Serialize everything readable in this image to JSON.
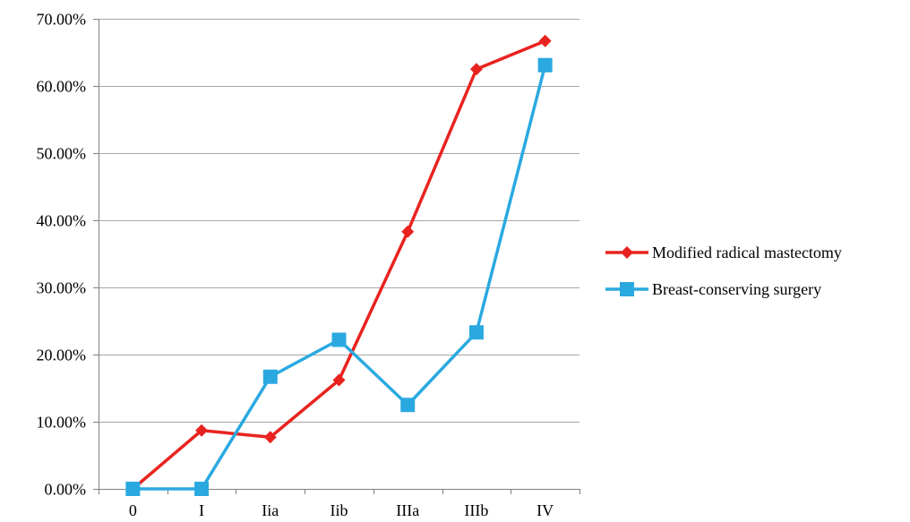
{
  "chart_data": {
    "type": "line",
    "categories": [
      "0",
      "I",
      "Iia",
      "Iib",
      "IIIa",
      "IIIb",
      "IV"
    ],
    "series": [
      {
        "name": "Modified radical mastectomy",
        "values": [
          0.0,
          8.7,
          7.7,
          16.2,
          38.3,
          62.5,
          66.7
        ],
        "color": "#e8231f",
        "marker": "diamond"
      },
      {
        "name": "Breast-conserving surgery",
        "values": [
          0.0,
          0.0,
          16.7,
          22.2,
          12.5,
          23.3,
          63.1
        ],
        "color": "#2aa9e0",
        "marker": "square"
      }
    ],
    "title": "",
    "xlabel": "",
    "ylabel": "",
    "ylim": [
      0,
      70
    ],
    "y_ticks": [
      "0.00%",
      "10.00%",
      "20.00%",
      "30.00%",
      "40.00%",
      "50.00%",
      "60.00%",
      "70.00%"
    ],
    "grid": true,
    "legend_position": "right"
  }
}
